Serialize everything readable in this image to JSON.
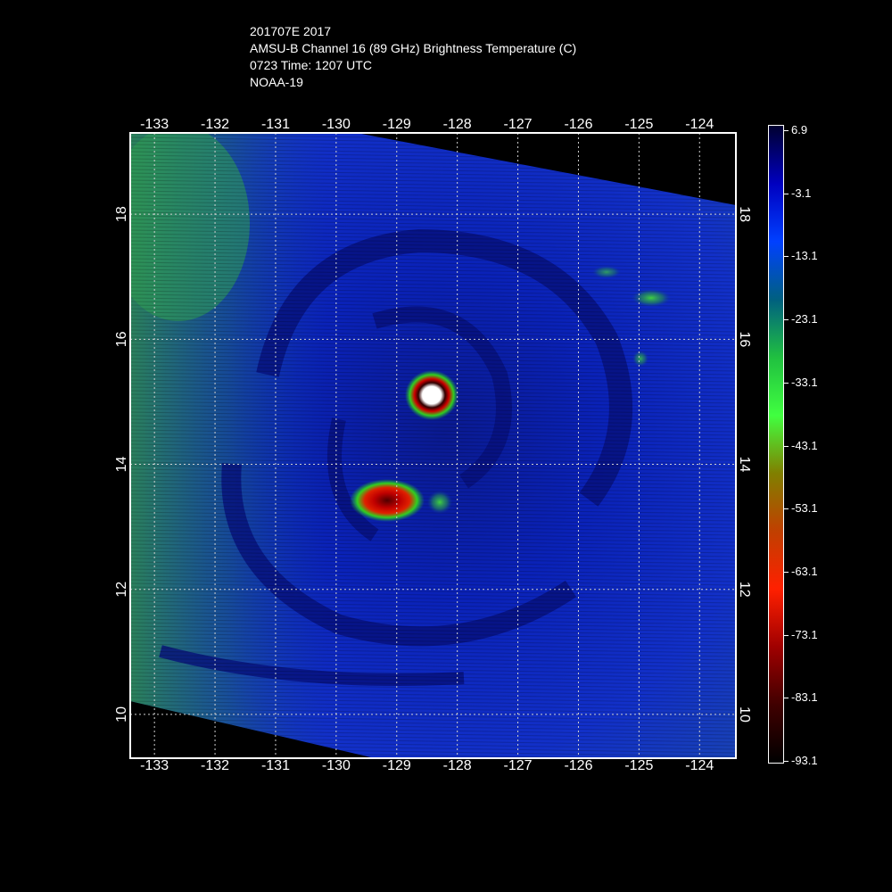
{
  "header": {
    "line1": "201707E 2017",
    "line2": "AMSU-B Channel 16 (89 GHz) Brightness Temperature (C)",
    "line3": "0723 Time: 1207 UTC",
    "line4": "NOAA-19"
  },
  "map": {
    "lon_ticks": [
      "-133",
      "-132",
      "-131",
      "-130",
      "-129",
      "-128",
      "-127",
      "-126",
      "-125",
      "-124"
    ],
    "lat_ticks": [
      "18",
      "16",
      "14",
      "12",
      "10"
    ],
    "lon_range": [
      -133.4,
      -123.4
    ],
    "lat_range": [
      9.3,
      19.3
    ],
    "grid": true,
    "colors": {
      "background_cold": "#0020c8",
      "swath_edge": "#1040a0",
      "convection_green": "#20c040",
      "intense_red": "#c00000",
      "eye_white": "#ffffff"
    }
  },
  "colorbar": {
    "labels": [
      "6.9",
      "-3.1",
      "-13.1",
      "-23.1",
      "-33.1",
      "-43.1",
      "-53.1",
      "-63.1",
      "-73.1",
      "-83.1",
      "-93.1"
    ],
    "stops": [
      "#000030",
      "#0000c0",
      "#0040ff",
      "#006080",
      "#20c040",
      "#40ff40",
      "#808000",
      "#c04000",
      "#ff2000",
      "#a00000",
      "#400000",
      "#000000"
    ]
  }
}
